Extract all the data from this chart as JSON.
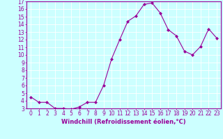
{
  "x": [
    0,
    1,
    2,
    3,
    4,
    5,
    6,
    7,
    8,
    9,
    10,
    11,
    12,
    13,
    14,
    15,
    16,
    17,
    18,
    19,
    20,
    21,
    22,
    23
  ],
  "y": [
    4.5,
    3.8,
    3.8,
    3.0,
    3.0,
    2.9,
    3.2,
    3.8,
    3.8,
    6.0,
    9.5,
    12.0,
    14.4,
    15.1,
    16.6,
    16.8,
    15.5,
    13.3,
    12.5,
    10.5,
    10.0,
    11.1,
    13.4,
    12.2
  ],
  "line_color": "#990099",
  "marker": "D",
  "marker_size": 2.0,
  "bg_color": "#ccffff",
  "grid_color": "#ffffff",
  "xlabel": "Windchill (Refroidissement éolien,°C)",
  "xlim": [
    -0.5,
    23.5
  ],
  "ylim": [
    3,
    17
  ],
  "yticks": [
    3,
    4,
    5,
    6,
    7,
    8,
    9,
    10,
    11,
    12,
    13,
    14,
    15,
    16,
    17
  ],
  "xticks": [
    0,
    1,
    2,
    3,
    4,
    5,
    6,
    7,
    8,
    9,
    10,
    11,
    12,
    13,
    14,
    15,
    16,
    17,
    18,
    19,
    20,
    21,
    22,
    23
  ],
  "tick_color": "#990099",
  "label_color": "#990099",
  "axis_color": "#990099",
  "font_size": 5.5,
  "xlabel_fontsize": 6.0,
  "linewidth": 0.8
}
